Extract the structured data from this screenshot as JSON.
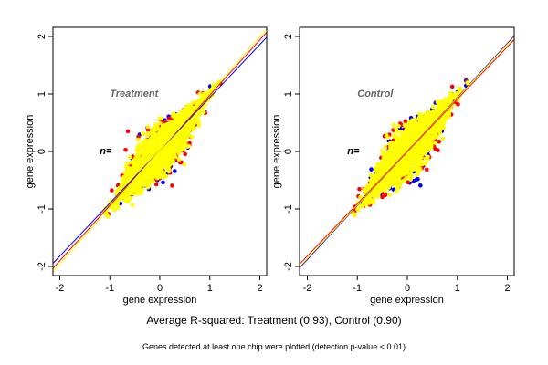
{
  "chart_data": [
    {
      "type": "scatter",
      "panel_title": "Treatment",
      "n_label": "n=",
      "xlabel": "gene expression",
      "ylabel": "gene expression",
      "xlim": [
        -2.2,
        2.15
      ],
      "ylim": [
        -2.15,
        2.15
      ],
      "xticks": [
        "-2",
        "-1",
        "0",
        "1",
        "2"
      ],
      "yticks": [
        "-2",
        "-1",
        "0",
        "1",
        "2"
      ],
      "grid": false,
      "series_colors": [
        "#0000ff",
        "#ff0000",
        "#ffff00"
      ],
      "point_cloud": {
        "x_range": [
          -1.1,
          1.25
        ],
        "y_range": [
          -1.1,
          1.2
        ]
      },
      "fit_lines": [
        {
          "color": "#0000ff",
          "slope": 0.92,
          "intercept": 0.02
        },
        {
          "color": "#ff0000",
          "slope": 0.96,
          "intercept": 0.02
        },
        {
          "color": "#ffff00",
          "slope": 0.99,
          "intercept": 0.02
        }
      ]
    },
    {
      "type": "scatter",
      "panel_title": "Control",
      "n_label": "n=",
      "xlabel": "gene expression",
      "ylabel": "gene expression",
      "xlim": [
        -2.2,
        2.15
      ],
      "ylim": [
        -2.15,
        2.15
      ],
      "xticks": [
        "-2",
        "-1",
        "0",
        "1",
        "2"
      ],
      "yticks": [
        "-2",
        "-1",
        "0",
        "1",
        "2"
      ],
      "grid": false,
      "series_colors": [
        "#0000ff",
        "#ff0000",
        "#ffff00"
      ],
      "point_cloud": {
        "x_range": [
          -1.1,
          1.25
        ],
        "y_range": [
          -1.1,
          1.2
        ]
      },
      "fit_lines": [
        {
          "color": "#0000ff",
          "slope": 0.94,
          "intercept": 0.0
        },
        {
          "color": "#ffff00",
          "slope": 0.93,
          "intercept": 0.0
        },
        {
          "color": "#ff0000",
          "slope": 0.91,
          "intercept": 0.0
        }
      ]
    }
  ],
  "footer": {
    "main": "Average R-squared: Treatment (0.93), Control (0.90)",
    "sub": "Genes detected at least one chip were plotted (detection p-value < 0.01)"
  }
}
